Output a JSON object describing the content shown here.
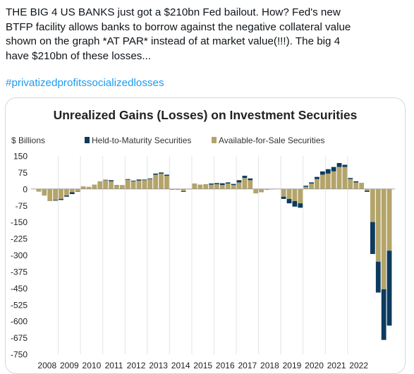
{
  "tweet": {
    "text_lines": [
      "THE BIG 4 US BANKS just got a $210bn Fed bailout. How? Fed's new",
      "BTFP facility allows banks to borrow against the negative collateral value",
      "shown on the graph *AT PAR* instead of at market value(!!!). The big 4",
      "have $210bn of these losses..."
    ],
    "hashtag": "#privatizedprofitssocializedlosses"
  },
  "colors": {
    "htm": "#0d3b5e",
    "afs": "#b3a46a",
    "hashtag": "#1d9bf0"
  },
  "chart_data": {
    "type": "bar",
    "stacked": true,
    "title": "Unrealized Gains (Losses) on Investment Securities",
    "ylabel": "$ Billions",
    "ylim": [
      -750,
      150
    ],
    "yticks": [
      "150",
      "75",
      "0",
      "-75",
      "-150",
      "-225",
      "-300",
      "-375",
      "-450",
      "-525",
      "-600",
      "-675",
      "-750"
    ],
    "ytick_values": [
      150,
      75,
      0,
      -75,
      -150,
      -225,
      -300,
      -375,
      -450,
      -525,
      -600,
      -675,
      -750
    ],
    "x_tick_labels": [
      "2008",
      "2009",
      "2010",
      "2011",
      "2012",
      "2013",
      "2014",
      "2015",
      "2016",
      "2017",
      "2018",
      "2019",
      "2020",
      "2021",
      "2022"
    ],
    "legend_position": "top",
    "series": [
      {
        "name": "Held-to-Maturity Securities",
        "color": "#0d3b5e",
        "values": [
          0,
          0,
          0,
          -3,
          -5,
          -5,
          -8,
          -2,
          0,
          0,
          0,
          0,
          2,
          5,
          2,
          0,
          3,
          3,
          5,
          3,
          3,
          5,
          5,
          5,
          0,
          0,
          -3,
          0,
          0,
          0,
          0,
          5,
          5,
          8,
          5,
          5,
          10,
          10,
          8,
          0,
          0,
          0,
          0,
          0,
          -10,
          -20,
          -25,
          -20,
          5,
          5,
          10,
          15,
          20,
          20,
          18,
          10,
          5,
          5,
          0,
          -5,
          -145,
          -140,
          -230,
          -340
        ]
      },
      {
        "name": "Available-for-Sale Securities",
        "color": "#b3a46a",
        "values": [
          -12,
          -30,
          -55,
          -50,
          -45,
          -30,
          -15,
          -10,
          12,
          10,
          20,
          35,
          40,
          35,
          15,
          18,
          42,
          35,
          38,
          40,
          45,
          65,
          70,
          60,
          -4,
          -4,
          -10,
          -2,
          25,
          20,
          22,
          20,
          22,
          18,
          25,
          18,
          30,
          50,
          40,
          -20,
          -15,
          -4,
          -2,
          0,
          -35,
          -45,
          -55,
          -65,
          10,
          25,
          45,
          65,
          70,
          80,
          100,
          100,
          45,
          30,
          28,
          -8,
          -150,
          -330,
          -455,
          -280
        ]
      }
    ]
  }
}
